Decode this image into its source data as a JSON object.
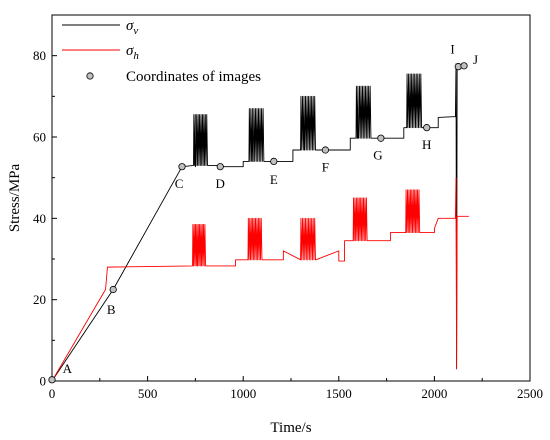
{
  "chart_data": {
    "type": "line",
    "title": "",
    "xlabel": "Time/s",
    "ylabel": "Stress/MPa",
    "xlim": [
      0,
      2500
    ],
    "ylim": [
      0,
      90
    ],
    "x_ticks": [
      0,
      500,
      1000,
      1500,
      2000,
      2500
    ],
    "y_ticks": [
      0,
      20,
      40,
      60,
      80
    ],
    "grid": false,
    "legend_position": "top-left",
    "colors": {
      "sigma_v": "#000000",
      "sigma_h": "#ff0000",
      "marker_fill": "#c0c0c0"
    },
    "legend": [
      {
        "key": "sigma_v",
        "text": "σ",
        "sub": "v"
      },
      {
        "key": "sigma_h",
        "text": "σ",
        "sub": "h"
      },
      {
        "key": "points",
        "text": "Coordinates of  images"
      }
    ],
    "series": [
      {
        "key": "sigma_v",
        "name": "σv",
        "base": [
          [
            0,
            0
          ],
          [
            320,
            22.5
          ],
          [
            680,
            52.7
          ],
          [
            750,
            52.7
          ],
          [
            750,
            53
          ],
          [
            880,
            53
          ],
          [
            880,
            52.7
          ],
          [
            1000,
            52.7
          ],
          [
            1000,
            54
          ],
          [
            1050,
            54
          ],
          [
            1050,
            54
          ],
          [
            1200,
            54
          ],
          [
            1200,
            54
          ],
          [
            1260,
            54
          ],
          [
            1260,
            56.8
          ],
          [
            1320,
            56.8
          ],
          [
            1460,
            56.8
          ],
          [
            1560,
            56.8
          ],
          [
            1560,
            59.7
          ],
          [
            1600,
            59.7
          ],
          [
            1740,
            59.7
          ],
          [
            1840,
            59.7
          ],
          [
            1840,
            62.3
          ],
          [
            1870,
            62.3
          ],
          [
            2000,
            62.3
          ],
          [
            2020,
            62.3
          ],
          [
            2020,
            64.8
          ],
          [
            2100,
            65
          ],
          [
            2110,
            65
          ]
        ],
        "oscillations": [
          {
            "start": 740,
            "end": 815,
            "low": 53,
            "high": 65.5,
            "cycles": 10
          },
          {
            "start": 1030,
            "end": 1110,
            "low": 54,
            "high": 67,
            "cycles": 10
          },
          {
            "start": 1300,
            "end": 1380,
            "low": 56.8,
            "high": 70,
            "cycles": 10
          },
          {
            "start": 1590,
            "end": 1670,
            "low": 59.7,
            "high": 72.5,
            "cycles": 10
          },
          {
            "start": 1855,
            "end": 1935,
            "low": 62.3,
            "high": 75.5,
            "cycles": 10
          }
        ],
        "tail": [
          [
            2110,
            65
          ],
          [
            2113,
            78
          ],
          [
            2116,
            3
          ],
          [
            2119,
            77
          ],
          [
            2125,
            77
          ]
        ]
      },
      {
        "key": "sigma_h",
        "name": "σh",
        "base": [
          [
            0,
            0
          ],
          [
            280,
            22.5
          ],
          [
            280,
            22.5
          ],
          [
            290,
            28
          ],
          [
            760,
            28.3
          ],
          [
            960,
            28.3
          ],
          [
            960,
            29.8
          ],
          [
            1210,
            29.8
          ],
          [
            1210,
            32
          ],
          [
            1500,
            32
          ],
          [
            1500,
            29.5
          ],
          [
            1530,
            29.5
          ],
          [
            1530,
            34.5
          ],
          [
            1770,
            34.5
          ],
          [
            1770,
            36.5
          ],
          [
            2000,
            36.5
          ],
          [
            2000,
            37.5
          ],
          [
            2020,
            40
          ],
          [
            2110,
            40
          ],
          [
            2113,
            50
          ],
          [
            2116,
            3
          ],
          [
            2119,
            40.5
          ],
          [
            2180,
            40.5
          ]
        ],
        "oscillations": [
          {
            "start": 735,
            "end": 805,
            "low": 28.3,
            "high": 38.5,
            "cycles": 10
          },
          {
            "start": 1025,
            "end": 1100,
            "low": 29.8,
            "high": 40,
            "cycles": 10
          },
          {
            "start": 1300,
            "end": 1380,
            "low": 29.8,
            "high": 40,
            "cycles": 10
          },
          {
            "start": 1575,
            "end": 1650,
            "low": 34.5,
            "high": 45,
            "cycles": 10
          },
          {
            "start": 1850,
            "end": 1925,
            "low": 36.5,
            "high": 47,
            "cycles": 10
          }
        ]
      }
    ],
    "image_points": [
      {
        "label": "A",
        "x": 0,
        "y": 0.3,
        "lx": 80,
        "ly": 2.0
      },
      {
        "label": "B",
        "x": 320,
        "y": 22.5,
        "lx": 310,
        "ly": 16.5
      },
      {
        "label": "C",
        "x": 680,
        "y": 52.7,
        "lx": 665,
        "ly": 47.5
      },
      {
        "label": "D",
        "x": 880,
        "y": 52.7,
        "lx": 880,
        "ly": 47.5
      },
      {
        "label": "E",
        "x": 1160,
        "y": 54,
        "lx": 1160,
        "ly": 48.5
      },
      {
        "label": "F",
        "x": 1430,
        "y": 56.8,
        "lx": 1430,
        "ly": 51.5
      },
      {
        "label": "G",
        "x": 1720,
        "y": 59.7,
        "lx": 1705,
        "ly": 54.5
      },
      {
        "label": "H",
        "x": 1960,
        "y": 62.3,
        "lx": 1960,
        "ly": 57.0
      },
      {
        "label": "I",
        "x": 2125,
        "y": 77.3,
        "lx": 2095,
        "ly": 80.5
      },
      {
        "label": "J",
        "x": 2155,
        "y": 77.5,
        "lx": 2215,
        "ly": 78.0
      }
    ]
  }
}
